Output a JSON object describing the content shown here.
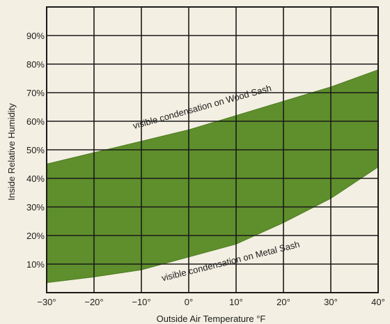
{
  "chart_data": {
    "type": "area",
    "title": "",
    "xlabel": "Outside Air Temperature °F",
    "ylabel": "Inside Relative Humidity",
    "xlim": [
      -30,
      40
    ],
    "ylim": [
      0,
      100
    ],
    "x_ticks": [
      -30,
      -20,
      -10,
      0,
      10,
      20,
      30,
      40
    ],
    "x_tick_labels": [
      "−30°",
      "−20°",
      "−10°",
      "0°",
      "10°",
      "20°",
      "30°",
      "40°"
    ],
    "y_ticks": [
      10,
      20,
      30,
      40,
      50,
      60,
      70,
      80,
      90
    ],
    "y_tick_labels": [
      "10%",
      "20%",
      "30%",
      "40%",
      "50%",
      "60%",
      "70%",
      "80%",
      "90%"
    ],
    "grid": true,
    "band_color": "#5e8f2c",
    "series": [
      {
        "name": "visible condensation on Wood Sash",
        "x": [
          -30,
          -20,
          -10,
          0,
          10,
          20,
          30,
          40
        ],
        "y": [
          45,
          49,
          53,
          57,
          62,
          67,
          72,
          78
        ]
      },
      {
        "name": "visible condensation on Metal Sash",
        "x": [
          -30,
          -20,
          -10,
          0,
          10,
          20,
          30,
          40
        ],
        "y": [
          3.5,
          5.5,
          8,
          12.5,
          17,
          24.5,
          33,
          44
        ]
      }
    ],
    "annotations": [
      {
        "text": "visible condensation on Wood Sash",
        "x": 3,
        "y": 64
      },
      {
        "text": "visible condensation on Metal Sash",
        "x": 9,
        "y": 10
      }
    ]
  }
}
